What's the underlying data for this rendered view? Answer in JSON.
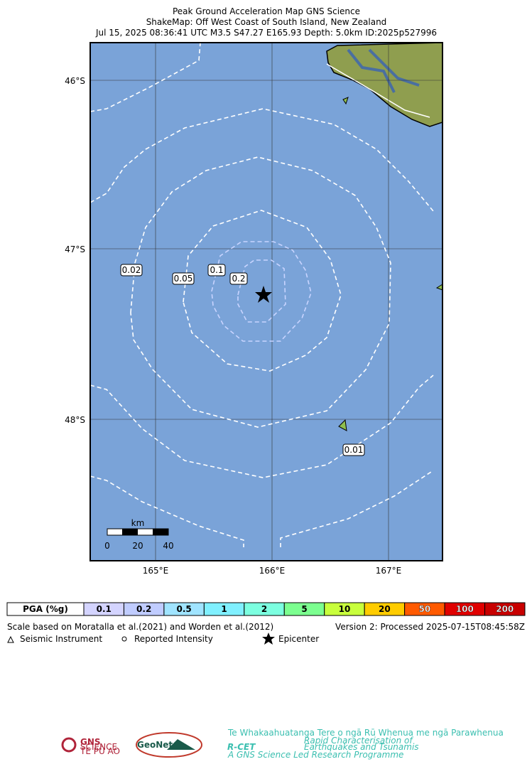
{
  "header": {
    "title": "Peak Ground Acceleration Map GNS Science",
    "subtitle": "ShakeMap: Off West Coast of South Island, New Zealand",
    "details": "Jul 15, 2025 08:36:41 UTC M3.5 S47.27 E165.93 Depth: 5.0km ID:2025p527996"
  },
  "map": {
    "lat_labels": [
      "46°S",
      "47°S",
      "48°S"
    ],
    "lon_labels": [
      "165°E",
      "166°E",
      "167°E"
    ],
    "contour_labels": [
      "0.02",
      "0.05",
      "0.1",
      "0.2",
      "0.01"
    ],
    "scale_bar": {
      "unit": "km",
      "ticks": [
        "0",
        "20",
        "40"
      ]
    }
  },
  "legend": {
    "title": "PGA (%g)",
    "items": [
      {
        "label": "0.1",
        "color": "#d4d4ff"
      },
      {
        "label": "0.2",
        "color": "#c0ccff"
      },
      {
        "label": "0.5",
        "color": "#a0e4ff"
      },
      {
        "label": "1",
        "color": "#80f0ff"
      },
      {
        "label": "2",
        "color": "#7cffe0"
      },
      {
        "label": "5",
        "color": "#7cff90"
      },
      {
        "label": "10",
        "color": "#c8ff3c"
      },
      {
        "label": "20",
        "color": "#ffcc00"
      },
      {
        "label": "50",
        "color": "#ff5a00"
      },
      {
        "label": "100",
        "color": "#e00000"
      },
      {
        "label": "200",
        "color": "#c80000"
      }
    ]
  },
  "footer": {
    "scale_note": "Scale based on Moratalla et al.(2021) and Worden et al.(2012)",
    "version": "Version 2: Processed 2025-07-15T08:45:58Z",
    "symbols": [
      "Seismic Instrument",
      "Reported Intensity",
      "Epicenter"
    ]
  },
  "logos": {
    "gns": "GNS",
    "gns_sub": "SCIENCE",
    "gns_maori": "TE PŪ AO",
    "geonet": "GeoNet",
    "rcet": "R-CET",
    "rcet_top": "Te Whakaahuatanga Tere o ngā Rū Whenua me ngā Parawhenua",
    "rcet_sub1": "Rapid Characterisation of",
    "rcet_sub2": "Earthquakes and Tsunamis",
    "rcet_bottom": "A GNS Science Led Research Programme"
  }
}
